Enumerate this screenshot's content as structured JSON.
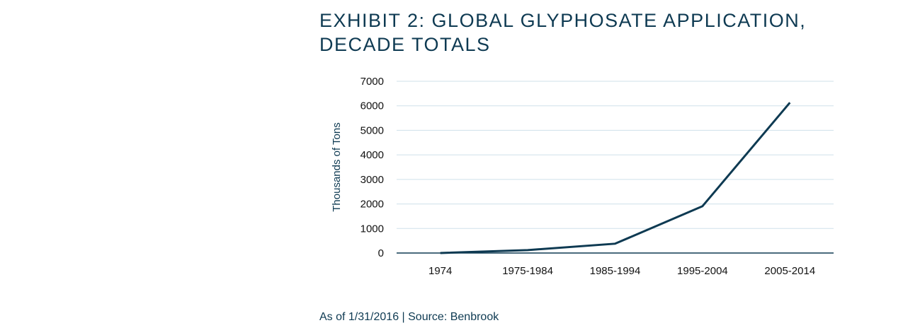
{
  "chart_data": {
    "type": "line",
    "title_lines": [
      "EXHIBIT 2: GLOBAL GLYPHOSATE APPLICATION,",
      "DECADE TOTALS"
    ],
    "ylabel": "Thousands of Tons",
    "xlabel": "",
    "categories": [
      "1974",
      "1975-1984",
      "1985-1994",
      "1995-2004",
      "2005-2014"
    ],
    "series": [
      {
        "values": [
          0,
          120,
          380,
          1910,
          6130
        ]
      }
    ],
    "ylim": [
      0,
      7000
    ],
    "yticks": [
      "0",
      "1000",
      "2000",
      "3000",
      "4000",
      "5000",
      "6000",
      "7000"
    ],
    "grid": true,
    "legend": "none",
    "line_color": "#0e3a52",
    "grid_color": "#cfe0ea"
  },
  "footer": "As of 1/31/2016 | Source: Benbrook"
}
